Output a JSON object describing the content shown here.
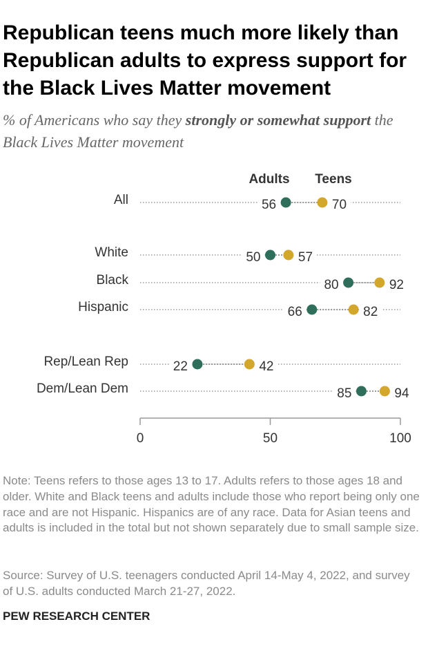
{
  "chart_data": {
    "type": "dot",
    "title": "Republican teens much more likely than Republican adults to express support for the Black Lives Matter movement",
    "subtitle": [
      "% of Americans who say they ",
      "strongly or somewhat support",
      " the Black Lives Matter movement"
    ],
    "categories": [
      "All",
      "White",
      "Black",
      "Hispanic",
      "Rep/Lean Rep",
      "Dem/Lean Dem"
    ],
    "series": [
      {
        "name": "Adults",
        "color": "#2f6e5b",
        "values": [
          56,
          50,
          80,
          66,
          22,
          85
        ]
      },
      {
        "name": "Teens",
        "color": "#d3a62c",
        "values": [
          70,
          57,
          92,
          82,
          42,
          94
        ]
      }
    ],
    "xlim": [
      0,
      100
    ],
    "xticks": [
      0,
      50,
      100
    ],
    "note": "Note: Teens refers to those ages 13 to 17. Adults refers to those ages 18 and older. White and Black teens and adults include those who report being only one race and are not Hispanic. Hispanics are of any race. Data for Asian teens and adults is included in the total but not shown separately due to small sample size.",
    "source": "Source: Survey of U.S. teenagers conducted April 14-May 4, 2022, and survey of U.S. adults conducted March 21-27, 2022.",
    "credit": "PEW RESEARCH CENTER"
  }
}
